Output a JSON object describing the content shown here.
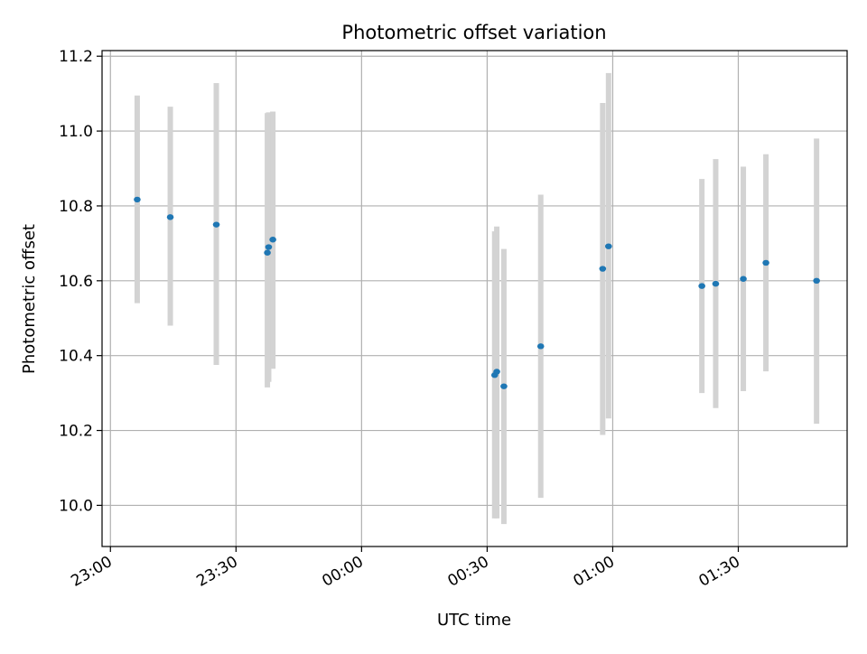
{
  "chart_data": {
    "type": "scatter",
    "title": "Photometric offset variation",
    "xlabel": "UTC time",
    "ylabel": "Photometric offset",
    "grid": true,
    "x_tick_labels": [
      "23:00",
      "23:30",
      "00:00",
      "00:30",
      "01:00",
      "01:30"
    ],
    "x_ticks_minutes_from_23_00": [
      0,
      30,
      60,
      90,
      120,
      150
    ],
    "y_tick_labels": [
      "10.0",
      "10.2",
      "10.4",
      "10.6",
      "10.8",
      "11.0",
      "11.2"
    ],
    "y_ticks": [
      10.0,
      10.2,
      10.4,
      10.6,
      10.8,
      11.0,
      11.2
    ],
    "xlim_labels": [
      "22:58",
      "01:56"
    ],
    "ylim": [
      9.89,
      11.215
    ],
    "colors": {
      "points": "#1f77b4",
      "errorbars": "#d3d3d3",
      "grid": "#b0b0b0"
    },
    "points": [
      {
        "time": "23:06.4",
        "y": 10.817,
        "ymin": 10.54,
        "ymax": 11.095
      },
      {
        "time": "23:14.3",
        "y": 10.77,
        "ymin": 10.48,
        "ymax": 11.065
      },
      {
        "time": "23:25.3",
        "y": 10.75,
        "ymin": 10.375,
        "ymax": 11.128
      },
      {
        "time": "23:37.5",
        "y": 10.675,
        "ymin": 10.315,
        "ymax": 11.048
      },
      {
        "time": "23:37.8",
        "y": 10.69,
        "ymin": 10.33,
        "ymax": 11.05
      },
      {
        "time": "23:38.8",
        "y": 10.71,
        "ymin": 10.365,
        "ymax": 11.052
      },
      {
        "time": "00:31.8",
        "y": 10.348,
        "ymin": 9.965,
        "ymax": 10.732
      },
      {
        "time": "00:32.3",
        "y": 10.357,
        "ymin": 9.965,
        "ymax": 10.745
      },
      {
        "time": "00:34.0",
        "y": 10.318,
        "ymin": 9.95,
        "ymax": 10.685
      },
      {
        "time": "00:42.8",
        "y": 10.425,
        "ymin": 10.02,
        "ymax": 10.83
      },
      {
        "time": "00:57.6",
        "y": 10.632,
        "ymin": 10.188,
        "ymax": 11.075
      },
      {
        "time": "00:59.0",
        "y": 10.692,
        "ymin": 10.232,
        "ymax": 11.155
      },
      {
        "time": "01:21.3",
        "y": 10.586,
        "ymin": 10.3,
        "ymax": 10.872
      },
      {
        "time": "01:24.6",
        "y": 10.592,
        "ymin": 10.26,
        "ymax": 10.925
      },
      {
        "time": "01:31.2",
        "y": 10.605,
        "ymin": 10.305,
        "ymax": 10.905
      },
      {
        "time": "01:36.6",
        "y": 10.648,
        "ymin": 10.358,
        "ymax": 10.938
      },
      {
        "time": "01:48.7",
        "y": 10.6,
        "ymin": 10.218,
        "ymax": 10.98
      }
    ]
  }
}
